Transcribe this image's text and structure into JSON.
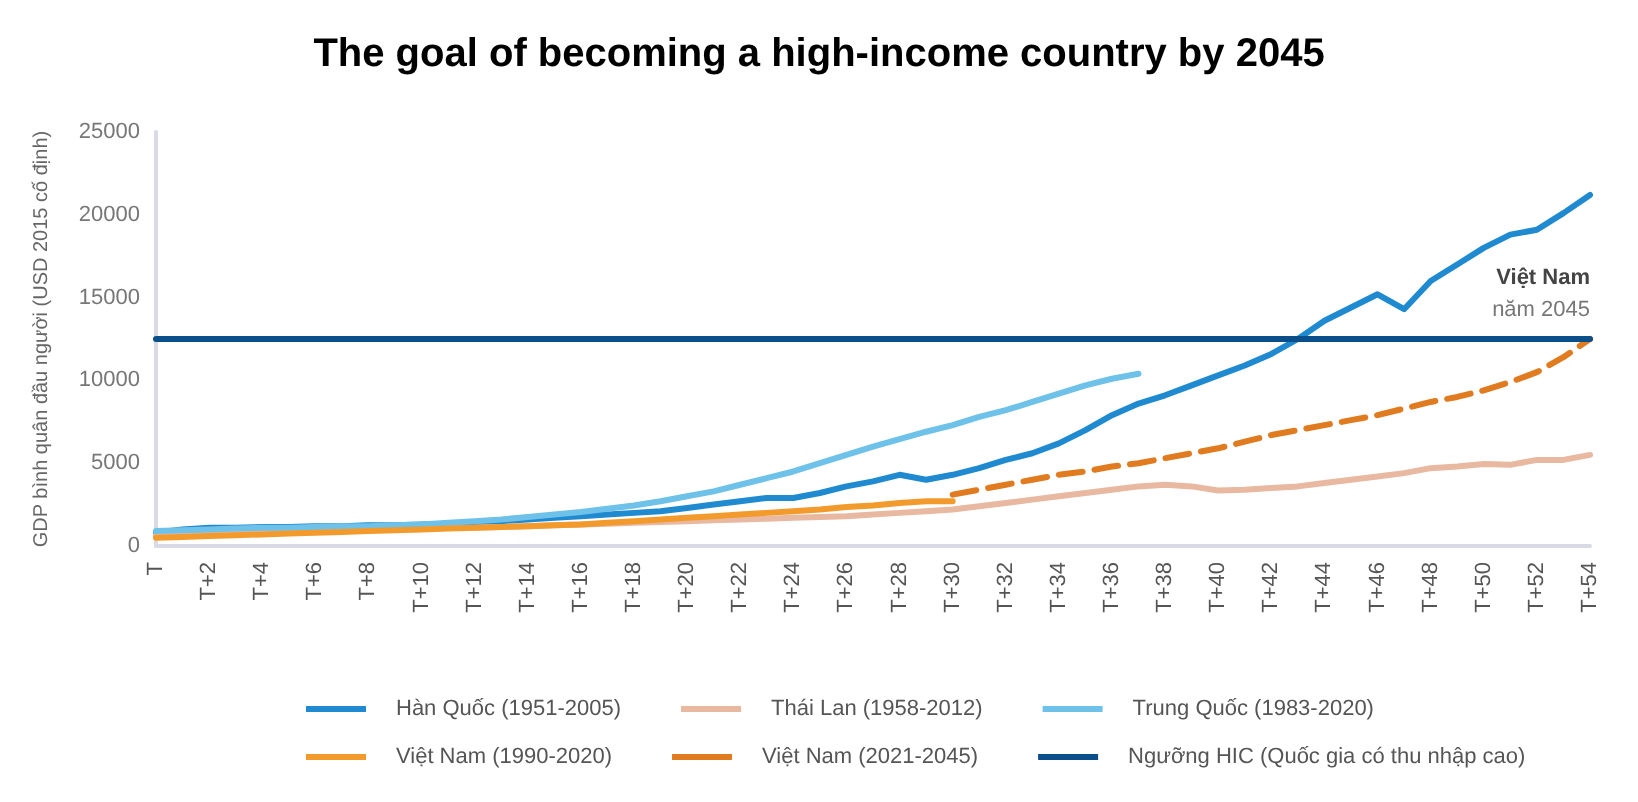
{
  "chart_data": {
    "type": "line",
    "title": "The goal of becoming a high-income country by 2045",
    "ylabel": "GDP bình quân đầu người (USD 2015 cố định)",
    "categories": [
      "T",
      null,
      "T+2",
      null,
      "T+4",
      null,
      "T+6",
      null,
      "T+8",
      null,
      "T+10",
      null,
      "T+12",
      null,
      "T+14",
      null,
      "T+16",
      null,
      "T+18",
      null,
      "T+20",
      null,
      "T+22",
      null,
      "T+24",
      null,
      "T+26",
      null,
      "T+28",
      null,
      "T+30",
      null,
      "T+32",
      null,
      "T+34",
      null,
      "T+36",
      null,
      "T+38",
      null,
      "T+40",
      null,
      "T+42",
      null,
      "T+44",
      null,
      "T+46",
      null,
      "T+48",
      null,
      "T+50",
      null,
      "T+52",
      null,
      "T+54"
    ],
    "ylim": [
      0,
      25000
    ],
    "yticks": [
      0,
      5000,
      10000,
      15000,
      20000,
      25000
    ],
    "grid": false,
    "legend": "bottom",
    "marker": "none",
    "line_style": "solid",
    "annotations": [
      {
        "text": "Việt Nam",
        "x": "T+54",
        "y": 12500
      },
      "năm 2045"
    ],
    "series": [
      {
        "name": "Hàn Quốc (1951-2005)",
        "color": "#1f8ad0",
        "values": [
          800,
          1000,
          1100,
          1100,
          1150,
          1150,
          1200,
          1200,
          1250,
          1250,
          1300,
          1350,
          1450,
          1500,
          1600,
          1700,
          1800,
          1900,
          2000,
          2100,
          2300,
          2500,
          2700,
          2900,
          2900,
          3200,
          3600,
          3900,
          4300,
          4000,
          4300,
          4700,
          5200,
          5600,
          6200,
          7000,
          7900,
          8600,
          9100,
          9700,
          10300,
          10900,
          11600,
          12500,
          13600,
          14400,
          15200,
          14300,
          16000,
          17000,
          18000,
          18800,
          19100,
          20100,
          21200
        ]
      },
      {
        "name": "Thái Lan (1958-2012)",
        "color": "#e8b9a0",
        "values": [
          600,
          650,
          700,
          750,
          800,
          850,
          900,
          950,
          1000,
          1000,
          1050,
          1100,
          1100,
          1150,
          1200,
          1250,
          1300,
          1350,
          1400,
          1450,
          1500,
          1550,
          1600,
          1650,
          1700,
          1750,
          1800,
          1900,
          2000,
          2100,
          2200,
          2400,
          2600,
          2800,
          3000,
          3200,
          3400,
          3600,
          3700,
          3600,
          3350,
          3400,
          3500,
          3600,
          3800,
          4000,
          4200,
          4400,
          4700,
          4800,
          4950,
          4900,
          5200,
          5200,
          5500
        ]
      },
      {
        "name": "Trung Quốc (1983-2020)",
        "color": "#6ec1e8",
        "values": [
          900,
          950,
          1000,
          1050,
          1100,
          1100,
          1150,
          1200,
          1200,
          1250,
          1300,
          1400,
          1500,
          1600,
          1750,
          1900,
          2050,
          2250,
          2450,
          2700,
          3000,
          3300,
          3700,
          4100,
          4500,
          5000,
          5500,
          6000,
          6450,
          6900,
          7300,
          7800,
          8200,
          8700,
          9200,
          9700,
          10100,
          10400,
          null,
          null,
          null,
          null,
          null,
          null,
          null,
          null,
          null,
          null,
          null,
          null,
          null,
          null,
          null,
          null,
          null
        ]
      },
      {
        "name": "Việt Nam (1990-2020)",
        "color": "#f39a2c",
        "values": [
          500,
          550,
          600,
          650,
          700,
          750,
          800,
          850,
          900,
          950,
          1000,
          1050,
          1100,
          1150,
          1200,
          1250,
          1300,
          1400,
          1500,
          1600,
          1700,
          1800,
          1900,
          2000,
          2100,
          2200,
          2350,
          2450,
          2600,
          2700,
          2700,
          null,
          null,
          null,
          null,
          null,
          null,
          null,
          null,
          null,
          null,
          null,
          null,
          null,
          null,
          null,
          null,
          null,
          null,
          null,
          null,
          null,
          null,
          null,
          null
        ]
      },
      {
        "name": "Việt Nam (2021-2045)",
        "color": "#e07b20",
        "line_style": "dashed",
        "values": [
          null,
          null,
          null,
          null,
          null,
          null,
          null,
          null,
          null,
          null,
          null,
          null,
          null,
          null,
          null,
          null,
          null,
          null,
          null,
          null,
          null,
          null,
          null,
          null,
          null,
          null,
          null,
          null,
          null,
          null,
          3100,
          3400,
          3700,
          4000,
          4300,
          4500,
          4800,
          5000,
          5300,
          5600,
          5900,
          6300,
          6700,
          7000,
          7300,
          7600,
          7900,
          8300,
          8700,
          9000,
          9400,
          9900,
          10500,
          11400,
          12500
        ]
      },
      {
        "name": "Ngưỡng HIC (Quốc gia có thu nhập cao)",
        "color": "#0b4f8a",
        "values": [
          12500,
          12500,
          12500,
          12500,
          12500,
          12500,
          12500,
          12500,
          12500,
          12500,
          12500,
          12500,
          12500,
          12500,
          12500,
          12500,
          12500,
          12500,
          12500,
          12500,
          12500,
          12500,
          12500,
          12500,
          12500,
          12500,
          12500,
          12500,
          12500,
          12500,
          12500,
          12500,
          12500,
          12500,
          12500,
          12500,
          12500,
          12500,
          12500,
          12500,
          12500,
          12500,
          12500,
          12500,
          12500,
          12500,
          12500,
          12500,
          12500,
          12500,
          12500,
          12500,
          12500,
          12500,
          12500
        ]
      }
    ]
  }
}
